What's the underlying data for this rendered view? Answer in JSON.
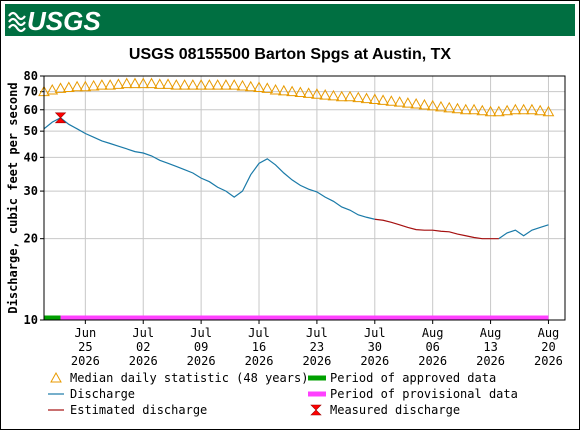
{
  "header": {
    "logo": "USGS"
  },
  "chart_data": {
    "type": "line",
    "title": "USGS 08155500 Barton Spgs at Austin, TX",
    "y_label": "Discharge, cubic feet per second",
    "yscale": "log",
    "grid": true,
    "ylim": [
      10,
      80
    ],
    "yticks": [
      10,
      20,
      30,
      40,
      50,
      60,
      70,
      80
    ],
    "xlim": [
      "2026-06-20",
      "2026-08-22"
    ],
    "xticks": [
      {
        "value": "2026-06-25",
        "label": [
          "Jun",
          "25",
          "2026"
        ]
      },
      {
        "value": "2026-07-02",
        "label": [
          "Jul",
          "02",
          "2026"
        ]
      },
      {
        "value": "2026-07-09",
        "label": [
          "Jul",
          "09",
          "2026"
        ]
      },
      {
        "value": "2026-07-16",
        "label": [
          "Jul",
          "16",
          "2026"
        ]
      },
      {
        "value": "2026-07-23",
        "label": [
          "Jul",
          "23",
          "2026"
        ]
      },
      {
        "value": "2026-07-30",
        "label": [
          "Jul",
          "30",
          "2026"
        ]
      },
      {
        "value": "2026-08-06",
        "label": [
          "Aug",
          "06",
          "2026"
        ]
      },
      {
        "value": "2026-08-13",
        "label": [
          "Aug",
          "13",
          "2026"
        ]
      },
      {
        "value": "2026-08-20",
        "label": [
          "Aug",
          "20",
          "2026"
        ]
      }
    ],
    "x": [
      "2026-06-20",
      "2026-06-21",
      "2026-06-22",
      "2026-06-23",
      "2026-06-24",
      "2026-06-25",
      "2026-06-26",
      "2026-06-27",
      "2026-06-28",
      "2026-06-29",
      "2026-06-30",
      "2026-07-01",
      "2026-07-02",
      "2026-07-03",
      "2026-07-04",
      "2026-07-05",
      "2026-07-06",
      "2026-07-07",
      "2026-07-08",
      "2026-07-09",
      "2026-07-10",
      "2026-07-11",
      "2026-07-12",
      "2026-07-13",
      "2026-07-14",
      "2026-07-15",
      "2026-07-16",
      "2026-07-17",
      "2026-07-18",
      "2026-07-19",
      "2026-07-20",
      "2026-07-21",
      "2026-07-22",
      "2026-07-23",
      "2026-07-24",
      "2026-07-25",
      "2026-07-26",
      "2026-07-27",
      "2026-07-28",
      "2026-07-29",
      "2026-07-30",
      "2026-07-31",
      "2026-08-01",
      "2026-08-02",
      "2026-08-03",
      "2026-08-04",
      "2026-08-05",
      "2026-08-06",
      "2026-08-07",
      "2026-08-08",
      "2026-08-09",
      "2026-08-10",
      "2026-08-11",
      "2026-08-12",
      "2026-08-13",
      "2026-08-14",
      "2026-08-15",
      "2026-08-16",
      "2026-08-17",
      "2026-08-18",
      "2026-08-19",
      "2026-08-20"
    ],
    "series": [
      {
        "name": "Median daily statistic (48 years)",
        "color": "#e89a00",
        "marker": "triangle",
        "values": [
          70,
          71,
          72,
          72.5,
          73,
          73,
          73.5,
          74,
          74,
          74.5,
          75,
          75,
          75,
          75,
          74.5,
          74.5,
          74,
          74,
          74,
          74,
          74,
          74,
          74,
          74,
          73.5,
          73,
          72.5,
          72,
          71,
          70.5,
          70,
          69.5,
          69,
          68.5,
          68,
          67.5,
          67,
          67,
          66.5,
          66,
          65.5,
          65,
          64.5,
          64,
          63.5,
          63,
          62.5,
          62,
          61.5,
          61,
          60.5,
          60,
          60,
          59.5,
          59,
          59,
          59.5,
          60,
          60,
          60,
          59.5,
          59
        ]
      },
      {
        "name": "Discharge",
        "color": "#1a7aa8",
        "marker": "line",
        "values": [
          51,
          54,
          56,
          53,
          51,
          49,
          47.5,
          46,
          45,
          44,
          43,
          42,
          41.5,
          40.5,
          39,
          38,
          37,
          36,
          35,
          33.5,
          32.5,
          31,
          30,
          28.5,
          30,
          34.5,
          38,
          39.5,
          37.5,
          35,
          33,
          31.5,
          30.5,
          29.8,
          28.5,
          27.5,
          26.2,
          25.5,
          24.5,
          24,
          23.6,
          null,
          null,
          null,
          null,
          null,
          null,
          null,
          null,
          null,
          null,
          null,
          null,
          null,
          null,
          20,
          21,
          21.5,
          20.5,
          21.5,
          22,
          22.5
        ]
      },
      {
        "name": "Estimated discharge",
        "color": "#a51010",
        "marker": "line",
        "values": [
          null,
          null,
          null,
          null,
          null,
          null,
          null,
          null,
          null,
          null,
          null,
          null,
          null,
          null,
          null,
          null,
          null,
          null,
          null,
          null,
          null,
          null,
          null,
          null,
          null,
          null,
          null,
          null,
          null,
          null,
          null,
          null,
          null,
          null,
          null,
          null,
          null,
          null,
          null,
          null,
          23.6,
          23.4,
          23.0,
          22.5,
          22.0,
          21.6,
          21.5,
          21.5,
          21.3,
          21.2,
          20.8,
          20.5,
          20.2,
          20.0,
          20.0,
          20.0,
          null,
          null,
          null,
          null,
          null,
          null
        ]
      }
    ],
    "measured": {
      "name": "Measured discharge",
      "color": "#ff0000",
      "x": "2026-06-22",
      "value": 56
    },
    "periods": [
      {
        "name": "Period of approved data",
        "color": "#00a000",
        "start": "2026-06-20",
        "end": "2026-06-22"
      },
      {
        "name": "Period of provisional data",
        "color": "#ff40ff",
        "start": "2026-06-22",
        "end": "2026-08-20"
      }
    ]
  }
}
